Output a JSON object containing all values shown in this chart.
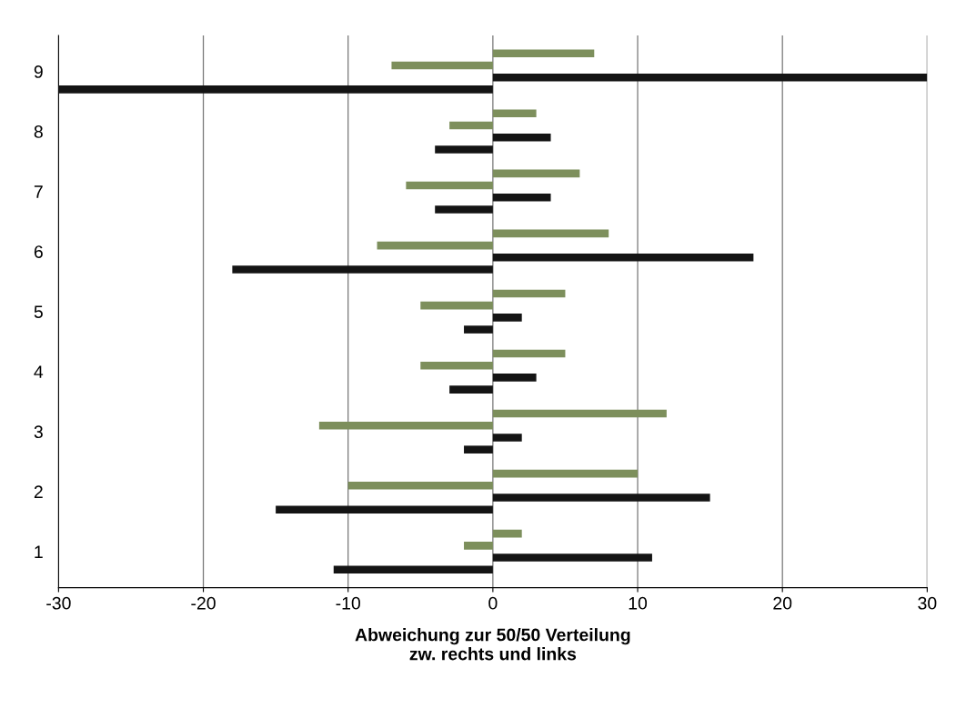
{
  "chart_data": {
    "type": "bar",
    "orientation": "horizontal",
    "categories": [
      "9",
      "8",
      "7",
      "6",
      "5",
      "4",
      "3",
      "2",
      "1"
    ],
    "series": [
      {
        "color": "#7d8f5c",
        "values": [
          7,
          3,
          6,
          8,
          5,
          5,
          12,
          10,
          2
        ]
      },
      {
        "color": "#7d8f5c",
        "values": [
          -7,
          -3,
          -6,
          -8,
          -5,
          -5,
          -12,
          -10,
          -2
        ]
      },
      {
        "color": "#141414",
        "values": [
          30,
          4,
          4,
          18,
          2,
          3,
          2,
          15,
          11
        ]
      },
      {
        "color": "#141414",
        "values": [
          -30,
          -4,
          -4,
          -18,
          -2,
          -3,
          -2,
          -15,
          -11
        ]
      }
    ],
    "xlim": [
      -30,
      30
    ],
    "xticks": [
      -30,
      -20,
      -10,
      0,
      10,
      20,
      30
    ],
    "xlabel": "Abweichung zur 50/50 Verteilung\nzw. rechts und links",
    "grid": "x",
    "legend": false
  }
}
